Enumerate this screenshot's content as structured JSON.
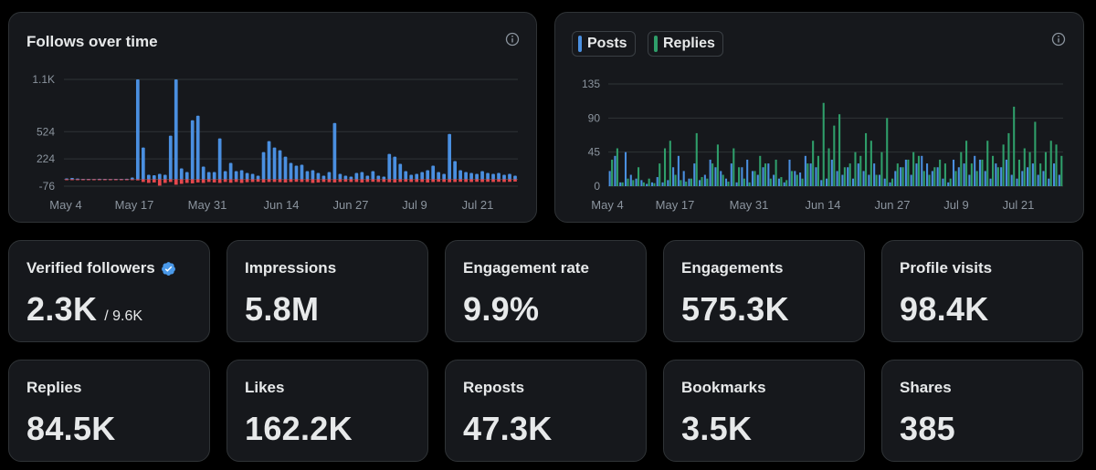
{
  "follows_chart": {
    "title": "Follows over time",
    "info_icon": "info-icon",
    "colors": {
      "positive": "#4a8fe0",
      "negative": "#e5484d",
      "grid": "#2f3336",
      "tick": "#8b949e"
    }
  },
  "posts_chart": {
    "legend": [
      {
        "label": "Posts",
        "color": "#4a8fe0"
      },
      {
        "label": "Replies",
        "color": "#2f9e6a"
      }
    ],
    "info_icon": "info-icon"
  },
  "chart_data": [
    {
      "type": "bar",
      "title": "Follows over time",
      "x_tick_labels": [
        "May 4",
        "May 17",
        "May 31",
        "Jun 14",
        "Jun 27",
        "Jul 9",
        "Jul 21"
      ],
      "y_tick_labels": [
        "1.1K",
        "524",
        "224",
        "-76"
      ],
      "ylim": [
        -76,
        1100
      ],
      "series": [
        {
          "name": "Gained",
          "values": [
            10,
            15,
            8,
            5,
            4,
            3,
            6,
            5,
            3,
            4,
            5,
            6,
            20,
            1100,
            350,
            50,
            45,
            60,
            50,
            480,
            1100,
            120,
            80,
            650,
            700,
            140,
            80,
            80,
            450,
            90,
            180,
            90,
            100,
            70,
            60,
            40,
            300,
            420,
            350,
            320,
            250,
            180,
            150,
            160,
            90,
            100,
            70,
            40,
            80,
            620,
            60,
            40,
            30,
            70,
            80,
            40,
            90,
            40,
            30,
            280,
            250,
            170,
            90,
            50,
            60,
            80,
            100,
            150,
            80,
            60,
            500,
            200,
            100,
            80,
            70,
            60,
            90,
            70,
            60,
            70,
            50,
            60,
            40
          ]
        },
        {
          "name": "Lost",
          "values": [
            -5,
            -8,
            -6,
            -4,
            -3,
            -5,
            -6,
            -4,
            -3,
            -5,
            -4,
            -6,
            -8,
            -12,
            -30,
            -40,
            -35,
            -70,
            -40,
            -30,
            -60,
            -50,
            -40,
            -45,
            -35,
            -40,
            -30,
            -35,
            -40,
            -30,
            -38,
            -30,
            -40,
            -32,
            -30,
            -28,
            -35,
            -30,
            -30,
            -32,
            -35,
            -30,
            -28,
            -30,
            -30,
            -40,
            -35,
            -30,
            -32,
            -35,
            -30,
            -28,
            -30,
            -30,
            -35,
            -30,
            -28,
            -30,
            -30,
            -32,
            -35,
            -30,
            -28,
            -30,
            -30,
            -30,
            -35,
            -30,
            -28,
            -30,
            -32,
            -30,
            -28,
            -30,
            -30,
            -28,
            -30,
            -28,
            -30,
            -28,
            -30,
            -28,
            -25
          ]
        }
      ]
    },
    {
      "type": "bar",
      "title": "",
      "x_tick_labels": [
        "May 4",
        "May 17",
        "May 31",
        "Jun 14",
        "Jun 27",
        "Jul 9",
        "Jul 21"
      ],
      "y_tick_labels": [
        "135",
        "90",
        "45",
        "0"
      ],
      "ylim": [
        0,
        135
      ],
      "series": [
        {
          "name": "Posts",
          "values": [
            20,
            40,
            5,
            45,
            15,
            10,
            8,
            3,
            5,
            12,
            5,
            8,
            25,
            40,
            20,
            10,
            30,
            8,
            15,
            35,
            25,
            20,
            10,
            30,
            5,
            25,
            35,
            20,
            15,
            25,
            30,
            15,
            10,
            5,
            35,
            20,
            18,
            40,
            30,
            25,
            8,
            10,
            35,
            20,
            15,
            25,
            10,
            30,
            20,
            15,
            30,
            15,
            10,
            5,
            20,
            25,
            35,
            15,
            30,
            40,
            30,
            20,
            25,
            10,
            5,
            35,
            25,
            30,
            15,
            40,
            35,
            20,
            10,
            30,
            25,
            35,
            15,
            10,
            20,
            25,
            30,
            15,
            20,
            10,
            30,
            15
          ]
        },
        {
          "name": "Replies",
          "values": [
            35,
            50,
            5,
            10,
            8,
            25,
            5,
            10,
            4,
            30,
            50,
            60,
            15,
            8,
            6,
            10,
            70,
            12,
            10,
            30,
            55,
            15,
            6,
            50,
            25,
            10,
            5,
            20,
            40,
            30,
            10,
            35,
            12,
            8,
            20,
            15,
            10,
            30,
            60,
            40,
            110,
            50,
            80,
            95,
            25,
            30,
            45,
            40,
            70,
            60,
            15,
            45,
            90,
            10,
            30,
            25,
            35,
            45,
            40,
            20,
            15,
            25,
            35,
            30,
            10,
            20,
            45,
            60,
            30,
            20,
            35,
            60,
            40,
            25,
            55,
            70,
            105,
            35,
            50,
            45,
            85,
            30,
            45,
            60,
            55,
            40
          ]
        }
      ]
    }
  ],
  "metrics_row1": [
    {
      "label": "Verified followers",
      "value": "2.3K",
      "sub": "/ 9.6K",
      "icon": "verified-badge-icon"
    },
    {
      "label": "Impressions",
      "value": "5.8M"
    },
    {
      "label": "Engagement rate",
      "value": "9.9%"
    },
    {
      "label": "Engagements",
      "value": "575.3K"
    },
    {
      "label": "Profile visits",
      "value": "98.4K"
    }
  ],
  "metrics_row2": [
    {
      "label": "Replies",
      "value": "84.5K"
    },
    {
      "label": "Likes",
      "value": "162.2K"
    },
    {
      "label": "Reposts",
      "value": "47.3K"
    },
    {
      "label": "Bookmarks",
      "value": "3.5K"
    },
    {
      "label": "Shares",
      "value": "385"
    }
  ]
}
